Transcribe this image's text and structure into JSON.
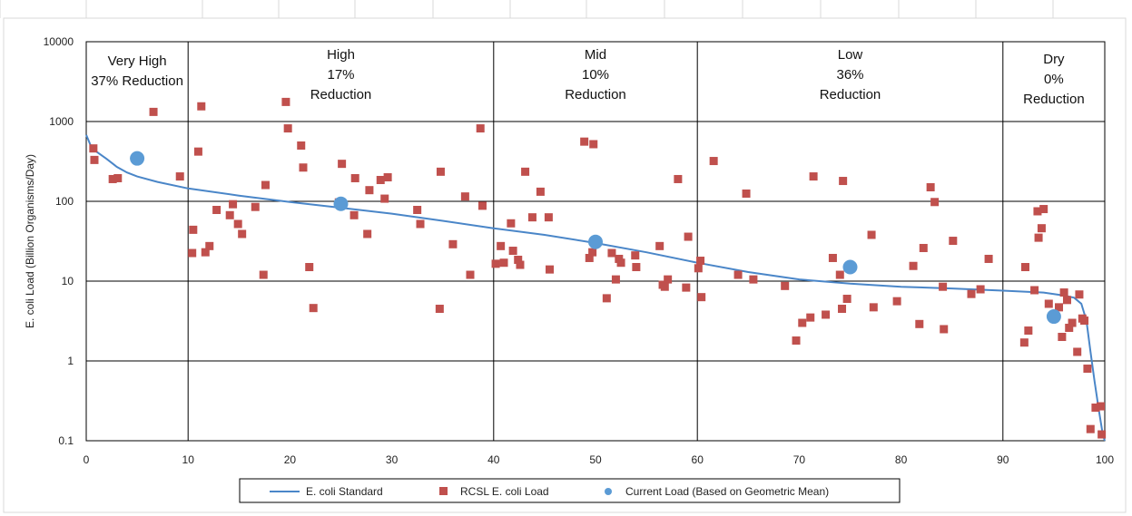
{
  "chart_data": {
    "type": "scatter",
    "ylabel": "E. coli Load (Billion Organisms/Day)",
    "xlabel": "",
    "xlim": [
      0,
      100
    ],
    "ylim": [
      0.1,
      10000
    ],
    "yscale": "log",
    "grid": true,
    "x_ticks": [
      "0",
      "10",
      "20",
      "30",
      "40",
      "50",
      "60",
      "70",
      "80",
      "90",
      "100"
    ],
    "y_ticks": [
      "0.1",
      "1",
      "10",
      "100",
      "1000",
      "10000"
    ],
    "legend_position": "bottom",
    "zones": [
      {
        "lines": [
          "Very High",
          "37% Reduction"
        ],
        "from": 0,
        "to": 10
      },
      {
        "lines": [
          "High",
          "17%",
          "Reduction"
        ],
        "from": 10,
        "to": 40
      },
      {
        "lines": [
          "Mid",
          "10%",
          "Reduction"
        ],
        "from": 40,
        "to": 60
      },
      {
        "lines": [
          "Low",
          "36%",
          "Reduction"
        ],
        "from": 60,
        "to": 90
      },
      {
        "lines": [
          "Dry",
          "0%",
          "Reduction"
        ],
        "from": 90,
        "to": 100
      }
    ],
    "series": [
      {
        "name": "E. coli Standard",
        "kind": "line",
        "color": "#4a86c8",
        "points": [
          [
            0,
            680
          ],
          [
            0.5,
            480
          ],
          [
            1,
            420
          ],
          [
            2,
            340
          ],
          [
            3,
            270
          ],
          [
            4,
            230
          ],
          [
            5,
            205
          ],
          [
            7,
            175
          ],
          [
            10,
            145
          ],
          [
            15,
            118
          ],
          [
            20,
            98
          ],
          [
            25,
            83
          ],
          [
            30,
            70
          ],
          [
            35,
            57
          ],
          [
            40,
            46
          ],
          [
            45,
            38
          ],
          [
            50,
            30
          ],
          [
            55,
            23
          ],
          [
            60,
            17
          ],
          [
            65,
            13
          ],
          [
            70,
            10.5
          ],
          [
            75,
            9.3
          ],
          [
            80,
            8.5
          ],
          [
            85,
            8.1
          ],
          [
            90,
            7.6
          ],
          [
            94,
            7.2
          ],
          [
            96,
            6.6
          ],
          [
            97,
            6.2
          ],
          [
            97.7,
            5.2
          ],
          [
            98.2,
            3.2
          ],
          [
            98.6,
            1.3
          ],
          [
            99,
            0.55
          ],
          [
            99.4,
            0.25
          ],
          [
            99.8,
            0.12
          ],
          [
            100,
            0.1
          ]
        ]
      },
      {
        "name": "RCSL E. coli Load",
        "kind": "scatter-square",
        "color": "#c0504d",
        "points": [
          [
            0.7,
            460
          ],
          [
            0.8,
            330
          ],
          [
            2.6,
            190
          ],
          [
            3.1,
            195
          ],
          [
            6.6,
            1320
          ],
          [
            9.2,
            205
          ],
          [
            10.4,
            22.5
          ],
          [
            10.5,
            44
          ],
          [
            11,
            420
          ],
          [
            11.3,
            1550
          ],
          [
            11.7,
            23
          ],
          [
            12.1,
            27.5
          ],
          [
            12.8,
            78
          ],
          [
            14.1,
            67
          ],
          [
            14.4,
            92
          ],
          [
            14.9,
            52
          ],
          [
            15.3,
            39
          ],
          [
            16.6,
            85
          ],
          [
            17.4,
            12
          ],
          [
            17.6,
            160
          ],
          [
            19.6,
            1760
          ],
          [
            19.8,
            820
          ],
          [
            21.1,
            500
          ],
          [
            21.3,
            265
          ],
          [
            21.9,
            15
          ],
          [
            22.3,
            4.6
          ],
          [
            24.8,
            97
          ],
          [
            25.1,
            295
          ],
          [
            26.3,
            67
          ],
          [
            26.4,
            195
          ],
          [
            27.6,
            39
          ],
          [
            27.8,
            138
          ],
          [
            28.9,
            185
          ],
          [
            29.3,
            108
          ],
          [
            29.6,
            200
          ],
          [
            32.5,
            78
          ],
          [
            32.8,
            52
          ],
          [
            34.7,
            4.5
          ],
          [
            34.8,
            235
          ],
          [
            36,
            29
          ],
          [
            37.2,
            115
          ],
          [
            37.7,
            12
          ],
          [
            38.7,
            820
          ],
          [
            38.9,
            88
          ],
          [
            40.2,
            16.5
          ],
          [
            40.7,
            27.5
          ],
          [
            41,
            17
          ],
          [
            41.7,
            53
          ],
          [
            41.9,
            24
          ],
          [
            42.4,
            18.5
          ],
          [
            42.6,
            16
          ],
          [
            43.1,
            235
          ],
          [
            43.8,
            63
          ],
          [
            44.6,
            132
          ],
          [
            45.4,
            63
          ],
          [
            45.5,
            14
          ],
          [
            48.9,
            560
          ],
          [
            49.4,
            19.5
          ],
          [
            49.7,
            23
          ],
          [
            49.8,
            520
          ],
          [
            51.1,
            6.1
          ],
          [
            51.6,
            22.5
          ],
          [
            52,
            10.5
          ],
          [
            52.3,
            19
          ],
          [
            52.5,
            17
          ],
          [
            53.9,
            21
          ],
          [
            54,
            15
          ],
          [
            56.3,
            27.5
          ],
          [
            56.6,
            9
          ],
          [
            56.8,
            8.5
          ],
          [
            57.1,
            10.5
          ],
          [
            58.1,
            190
          ],
          [
            58.9,
            8.3
          ],
          [
            59.1,
            36
          ],
          [
            60.1,
            14.5
          ],
          [
            60.3,
            18
          ],
          [
            60.4,
            6.3
          ],
          [
            61.6,
            320
          ],
          [
            64,
            12
          ],
          [
            64.8,
            125
          ],
          [
            65.5,
            10.5
          ],
          [
            68.6,
            8.7
          ],
          [
            69.7,
            1.8
          ],
          [
            70.3,
            3
          ],
          [
            71.1,
            3.5
          ],
          [
            71.4,
            205
          ],
          [
            72.6,
            3.8
          ],
          [
            73.3,
            19.5
          ],
          [
            74,
            12
          ],
          [
            74.2,
            4.5
          ],
          [
            74.3,
            180
          ],
          [
            74.7,
            6
          ],
          [
            77.1,
            38
          ],
          [
            77.3,
            4.7
          ],
          [
            79.6,
            5.6
          ],
          [
            81.2,
            15.5
          ],
          [
            81.8,
            2.9
          ],
          [
            82.2,
            26
          ],
          [
            82.9,
            150
          ],
          [
            83.3,
            98
          ],
          [
            84.1,
            8.5
          ],
          [
            84.2,
            2.5
          ],
          [
            85.1,
            32
          ],
          [
            86.9,
            6.9
          ],
          [
            87.8,
            7.9
          ],
          [
            88.6,
            19
          ],
          [
            92.1,
            1.7
          ],
          [
            92.2,
            15
          ],
          [
            92.5,
            2.4
          ],
          [
            93.1,
            7.7
          ],
          [
            93.4,
            75
          ],
          [
            93.5,
            35
          ],
          [
            93.8,
            46
          ],
          [
            94,
            80
          ],
          [
            94.5,
            5.2
          ],
          [
            95.5,
            4.7
          ],
          [
            95.8,
            2
          ],
          [
            96,
            7.2
          ],
          [
            96.3,
            5.8
          ],
          [
            96.5,
            2.6
          ],
          [
            96.8,
            3
          ],
          [
            97.3,
            1.3
          ],
          [
            97.5,
            6.8
          ],
          [
            97.8,
            3.4
          ],
          [
            98,
            3.2
          ],
          [
            98.3,
            0.8
          ],
          [
            98.6,
            0.14
          ],
          [
            99.1,
            0.26
          ],
          [
            99.6,
            0.27
          ],
          [
            99.7,
            0.12
          ]
        ]
      },
      {
        "name": "Current Load (Based on Geometric Mean)",
        "kind": "scatter-circle",
        "color": "#5b9bd5",
        "points": [
          [
            5,
            345
          ],
          [
            25,
            93
          ],
          [
            50,
            31
          ],
          [
            75,
            15
          ],
          [
            95,
            3.6
          ]
        ]
      }
    ]
  }
}
